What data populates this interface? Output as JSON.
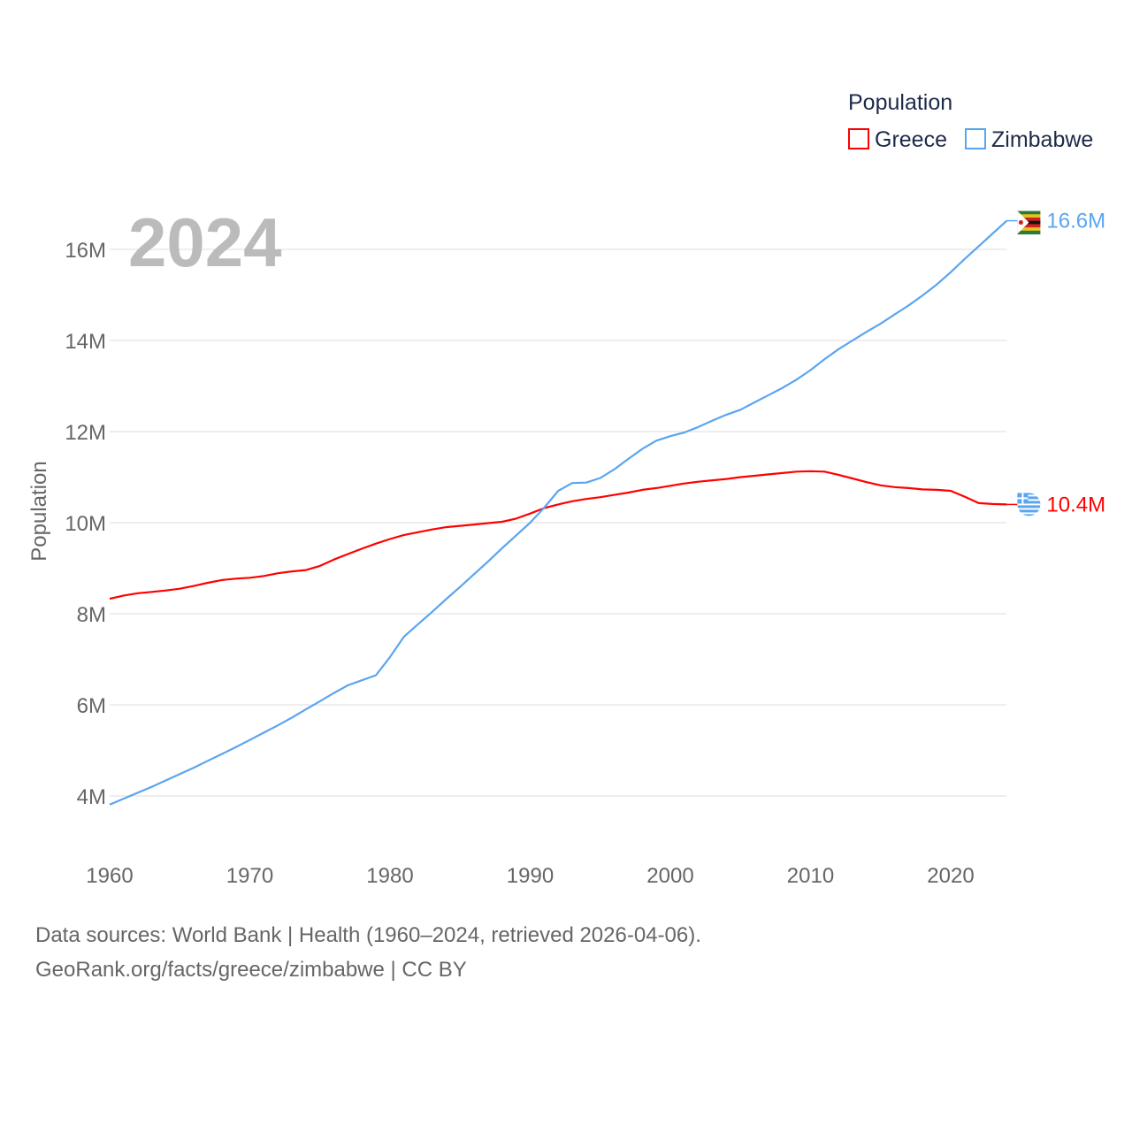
{
  "chart_data": {
    "type": "line",
    "year_label": "2024",
    "ylabel": "Population",
    "xlabel": "",
    "ylim": [
      4,
      16
    ],
    "yticks": [
      4,
      6,
      8,
      10,
      12,
      14,
      16
    ],
    "ytick_labels": [
      "4M",
      "6M",
      "8M",
      "10M",
      "12M",
      "14M",
      "16M"
    ],
    "xticks": [
      1960,
      1970,
      1980,
      1990,
      2000,
      2010,
      2020
    ],
    "xtick_labels": [
      "1960",
      "1970",
      "1980",
      "1990",
      "2000",
      "2010",
      "2020"
    ],
    "xlim": [
      1960,
      2024
    ],
    "legend": {
      "title": "Population",
      "placement": "top-right"
    },
    "x_start": 1960,
    "series": [
      {
        "name": "Greece",
        "color": "#ff0000",
        "end_label": "10.4M",
        "flag": "greece-flag",
        "values": [
          8.33,
          8.4,
          8.45,
          8.48,
          8.51,
          8.55,
          8.61,
          8.68,
          8.74,
          8.77,
          8.79,
          8.83,
          8.89,
          8.93,
          8.96,
          9.05,
          9.19,
          9.31,
          9.43,
          9.54,
          9.64,
          9.73,
          9.79,
          9.85,
          9.9,
          9.93,
          9.96,
          9.99,
          10.02,
          10.09,
          10.2,
          10.32,
          10.4,
          10.47,
          10.52,
          10.56,
          10.61,
          10.66,
          10.72,
          10.76,
          10.81,
          10.86,
          10.9,
          10.93,
          10.96,
          11.0,
          11.03,
          11.06,
          11.09,
          11.12,
          11.13,
          11.12,
          11.05,
          10.97,
          10.89,
          10.82,
          10.78,
          10.76,
          10.73,
          10.72,
          10.7,
          10.57,
          10.43,
          10.41,
          10.4
        ]
      },
      {
        "name": "Zimbabwe",
        "color": "#5aa5f0",
        "end_label": "16.6M",
        "flag": "zimbabwe-flag",
        "values": [
          3.81,
          3.94,
          4.07,
          4.2,
          4.34,
          4.48,
          4.62,
          4.77,
          4.92,
          5.07,
          5.23,
          5.39,
          5.55,
          5.72,
          5.9,
          6.08,
          6.26,
          6.43,
          6.54,
          6.65,
          7.05,
          7.5,
          7.77,
          8.04,
          8.32,
          8.59,
          8.87,
          9.15,
          9.44,
          9.72,
          10.0,
          10.33,
          10.7,
          10.87,
          10.88,
          10.98,
          11.17,
          11.4,
          11.62,
          11.8,
          11.9,
          11.98,
          12.1,
          12.24,
          12.37,
          12.48,
          12.64,
          12.8,
          12.96,
          13.14,
          13.35,
          13.59,
          13.81,
          14.0,
          14.19,
          14.37,
          14.57,
          14.77,
          14.99,
          15.23,
          15.5,
          15.79,
          16.07,
          16.35,
          16.63
        ]
      }
    ]
  },
  "footer": {
    "line1": "Data sources: World Bank | Health (1960–2024, retrieved 2026-04-06).",
    "line2": "GeoRank.org/facts/greece/zimbabwe | CC BY"
  }
}
